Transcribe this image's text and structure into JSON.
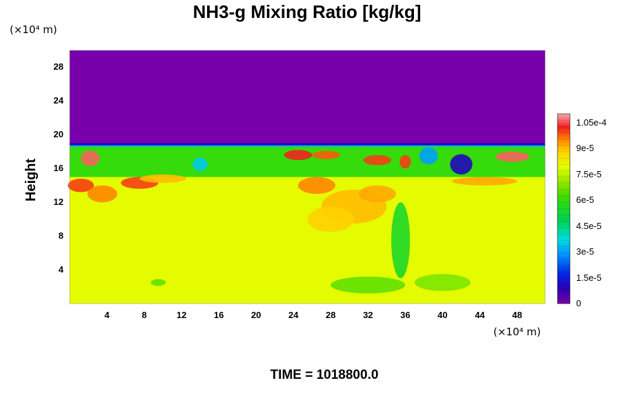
{
  "chart_data": {
    "type": "heatmap",
    "title": "NH3-g Mixing Ratio [kg/kg]",
    "xlabel": "",
    "ylabel": "Height",
    "x_unit_label": "(×10⁴ m)",
    "y_unit_label": "(×10⁴ m)",
    "xlim": [
      0,
      51
    ],
    "ylim": [
      0,
      30
    ],
    "x_ticks": [
      4,
      8,
      12,
      16,
      20,
      24,
      28,
      32,
      36,
      40,
      44,
      48
    ],
    "y_ticks": [
      4,
      8,
      12,
      16,
      20,
      24,
      28
    ],
    "colorbar": {
      "min": 0,
      "max": 0.00011,
      "tick_values": [
        0,
        1.5e-05,
        3e-05,
        4.5e-05,
        6e-05,
        7.5e-05,
        9e-05,
        0.000105
      ],
      "tick_labels": [
        "0",
        "1.5e-5",
        "3e-5",
        "4.5e-5",
        "6e-5",
        "7.5e-5",
        "9e-5",
        "1.05e-4"
      ]
    },
    "regions": [
      {
        "description": "upper layer",
        "y_range": [
          19,
          30
        ],
        "value": 0
      },
      {
        "description": "lower layer",
        "y_range": [
          0,
          15
        ],
        "value": 8e-05
      },
      {
        "description": "band near top of mixed layer",
        "y_range": [
          15,
          19
        ],
        "value": 6e-05
      }
    ]
  },
  "footer": {
    "time_label": "TIME = 1018800.0"
  }
}
